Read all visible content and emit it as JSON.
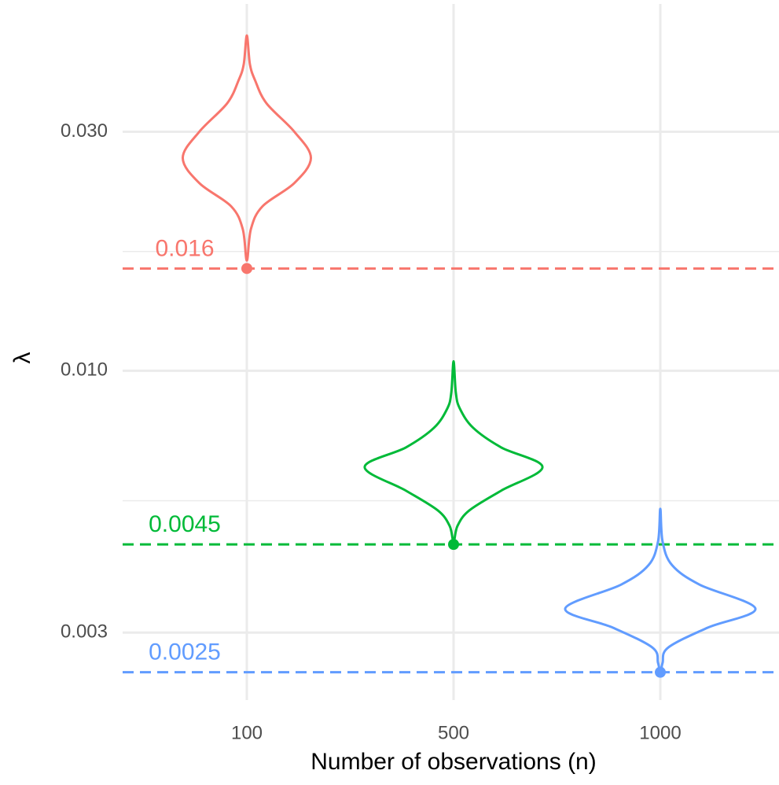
{
  "chart_data": {
    "type": "violin",
    "xlabel": "Number of observations (n)",
    "ylabel": "λ",
    "categories": [
      "100",
      "500",
      "1000"
    ],
    "log_y": true,
    "grid": true,
    "ylim": [
      0.0022,
      0.054
    ],
    "yticks": [
      {
        "value": 0.003,
        "label": "0.003"
      },
      {
        "value": 0.01,
        "label": "0.010"
      },
      {
        "value": 0.03,
        "label": "0.030"
      }
    ],
    "yminor": [
      0.0055,
      0.0173
    ],
    "series": [
      {
        "color": "#F8766D",
        "reference": 0.016,
        "y": [
          0.0467,
          0.0409,
          0.038,
          0.0342,
          0.03,
          0.0266,
          0.0237,
          0.0213,
          0.0192,
          0.0166
        ],
        "width": [
          0,
          0.015,
          0.04,
          0.095,
          0.23,
          0.31,
          0.23,
          0.076,
          0.02,
          0
        ]
      },
      {
        "color": "#00BA38",
        "reference": 0.0045,
        "y": [
          0.01044,
          0.00904,
          0.00841,
          0.00769,
          0.00703,
          0.00642,
          0.00576,
          0.00526,
          0.0049,
          0.00456
        ],
        "width": [
          0,
          0.011,
          0.03,
          0.095,
          0.23,
          0.43,
          0.23,
          0.076,
          0.019,
          0
        ]
      },
      {
        "color": "#619CFF",
        "reference": 0.0025,
        "y": [
          0.0053,
          0.00456,
          0.00409,
          0.00374,
          0.00335,
          0.00307,
          0.0028,
          0.00261,
          0.0025
        ],
        "width": [
          0,
          0.011,
          0.057,
          0.19,
          0.46,
          0.23,
          0.038,
          0.011,
          0
        ]
      }
    ]
  }
}
